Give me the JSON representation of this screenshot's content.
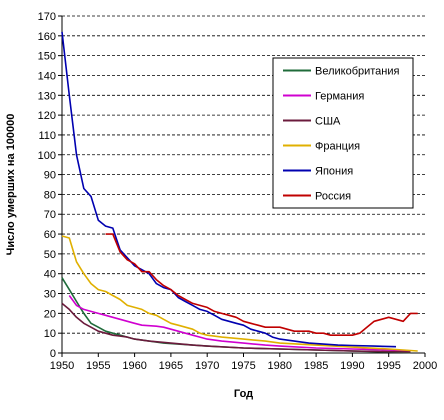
{
  "chart_data": {
    "type": "line",
    "title": "",
    "xlabel": "Год",
    "ylabel": "Число умерших на 100000",
    "xlim": [
      1950,
      2000
    ],
    "ylim": [
      0,
      170
    ],
    "x_ticks": [
      1950,
      1955,
      1960,
      1965,
      1970,
      1975,
      1980,
      1985,
      1990,
      1995,
      2000
    ],
    "y_ticks": [
      0,
      10,
      20,
      30,
      40,
      50,
      60,
      70,
      80,
      90,
      100,
      110,
      120,
      130,
      140,
      150,
      160,
      170
    ],
    "grid": "horizontal dashed",
    "legend_position": "right",
    "series": [
      {
        "name": "Великобритания",
        "color": "#1f6b3a",
        "points": [
          [
            1950,
            38
          ],
          [
            1951,
            32
          ],
          [
            1952,
            26
          ],
          [
            1953,
            20
          ],
          [
            1954,
            15
          ],
          [
            1955,
            13
          ],
          [
            1956,
            11
          ],
          [
            1957,
            10
          ],
          [
            1958,
            9
          ],
          [
            1959,
            8
          ],
          [
            1960,
            7
          ],
          [
            1962,
            6
          ],
          [
            1964,
            5
          ],
          [
            1966,
            4.5
          ],
          [
            1968,
            4
          ],
          [
            1970,
            3.5
          ],
          [
            1975,
            2.5
          ],
          [
            1980,
            2
          ],
          [
            1985,
            1.5
          ],
          [
            1990,
            1
          ],
          [
            1995,
            0.5
          ],
          [
            1998,
            0.3
          ]
        ]
      },
      {
        "name": "Германия",
        "color": "#d000d0",
        "points": [
          [
            1951,
            29
          ],
          [
            1952,
            24
          ],
          [
            1953,
            22
          ],
          [
            1954,
            21
          ],
          [
            1955,
            20
          ],
          [
            1956,
            19
          ],
          [
            1957,
            18
          ],
          [
            1958,
            17
          ],
          [
            1959,
            16
          ],
          [
            1960,
            15
          ],
          [
            1961,
            14
          ],
          [
            1963,
            13.5
          ],
          [
            1964,
            13
          ],
          [
            1965,
            12
          ],
          [
            1966,
            11
          ],
          [
            1967,
            10
          ],
          [
            1968,
            9
          ],
          [
            1969,
            8
          ],
          [
            1970,
            7
          ],
          [
            1972,
            6
          ],
          [
            1975,
            5
          ],
          [
            1978,
            4
          ],
          [
            1980,
            3.5
          ],
          [
            1985,
            2.5
          ],
          [
            1990,
            2
          ],
          [
            1995,
            1.5
          ],
          [
            1998,
            1
          ]
        ]
      },
      {
        "name": "США",
        "color": "#6b1b3c",
        "points": [
          [
            1950,
            25
          ],
          [
            1951,
            22
          ],
          [
            1952,
            18
          ],
          [
            1953,
            15
          ],
          [
            1954,
            13
          ],
          [
            1955,
            11
          ],
          [
            1956,
            10
          ],
          [
            1957,
            9
          ],
          [
            1958,
            8.5
          ],
          [
            1959,
            8
          ],
          [
            1960,
            7
          ],
          [
            1962,
            6
          ],
          [
            1965,
            5
          ],
          [
            1968,
            4
          ],
          [
            1970,
            3.5
          ],
          [
            1975,
            2.5
          ],
          [
            1980,
            2
          ],
          [
            1985,
            1.5
          ],
          [
            1990,
            1
          ],
          [
            1995,
            0.7
          ],
          [
            1998,
            0.5
          ]
        ]
      },
      {
        "name": "Франция",
        "color": "#e0b000",
        "points": [
          [
            1950,
            59
          ],
          [
            1951,
            58
          ],
          [
            1952,
            46
          ],
          [
            1953,
            40
          ],
          [
            1954,
            35
          ],
          [
            1955,
            32
          ],
          [
            1956,
            31
          ],
          [
            1957,
            29
          ],
          [
            1958,
            27
          ],
          [
            1959,
            24
          ],
          [
            1960,
            23
          ],
          [
            1961,
            22
          ],
          [
            1962,
            20
          ],
          [
            1963,
            19
          ],
          [
            1964,
            17
          ],
          [
            1965,
            15
          ],
          [
            1966,
            14
          ],
          [
            1967,
            13
          ],
          [
            1968,
            12
          ],
          [
            1969,
            10
          ],
          [
            1970,
            9
          ],
          [
            1972,
            8
          ],
          [
            1975,
            7
          ],
          [
            1978,
            6
          ],
          [
            1980,
            5
          ],
          [
            1985,
            4
          ],
          [
            1990,
            3
          ],
          [
            1995,
            2
          ],
          [
            1999,
            1
          ]
        ]
      },
      {
        "name": "Япония",
        "color": "#0000b0",
        "points": [
          [
            1950,
            162
          ],
          [
            1951,
            130
          ],
          [
            1952,
            100
          ],
          [
            1953,
            83
          ],
          [
            1954,
            79
          ],
          [
            1955,
            67
          ],
          [
            1956,
            64
          ],
          [
            1957,
            63
          ],
          [
            1958,
            52
          ],
          [
            1959,
            48
          ],
          [
            1960,
            44
          ],
          [
            1961,
            42
          ],
          [
            1962,
            40
          ],
          [
            1963,
            35
          ],
          [
            1964,
            33
          ],
          [
            1965,
            32
          ],
          [
            1966,
            28
          ],
          [
            1967,
            26
          ],
          [
            1968,
            24
          ],
          [
            1969,
            22
          ],
          [
            1970,
            21
          ],
          [
            1971,
            19
          ],
          [
            1972,
            17
          ],
          [
            1973,
            16
          ],
          [
            1974,
            15
          ],
          [
            1975,
            14
          ],
          [
            1976,
            12
          ],
          [
            1977,
            11
          ],
          [
            1978,
            10
          ],
          [
            1979,
            8
          ],
          [
            1980,
            7
          ],
          [
            1982,
            6
          ],
          [
            1984,
            5
          ],
          [
            1986,
            4.5
          ],
          [
            1988,
            4
          ],
          [
            1990,
            3.8
          ],
          [
            1993,
            3.5
          ],
          [
            1996,
            3.2
          ]
        ]
      },
      {
        "name": "Россия",
        "color": "#c00000",
        "points": [
          [
            1956,
            60
          ],
          [
            1957,
            60
          ],
          [
            1958,
            51
          ],
          [
            1959,
            47
          ],
          [
            1960,
            45
          ],
          [
            1961,
            41
          ],
          [
            1962,
            41
          ],
          [
            1963,
            37
          ],
          [
            1964,
            34
          ],
          [
            1965,
            32
          ],
          [
            1966,
            29
          ],
          [
            1967,
            27
          ],
          [
            1968,
            25
          ],
          [
            1969,
            24
          ],
          [
            1970,
            23
          ],
          [
            1971,
            21
          ],
          [
            1972,
            20
          ],
          [
            1973,
            19
          ],
          [
            1974,
            18
          ],
          [
            1975,
            16
          ],
          [
            1976,
            15
          ],
          [
            1977,
            14
          ],
          [
            1978,
            13
          ],
          [
            1979,
            13
          ],
          [
            1980,
            13
          ],
          [
            1981,
            12
          ],
          [
            1982,
            11
          ],
          [
            1983,
            11
          ],
          [
            1984,
            11
          ],
          [
            1985,
            10
          ],
          [
            1986,
            10
          ],
          [
            1987,
            9
          ],
          [
            1988,
            9
          ],
          [
            1989,
            9
          ],
          [
            1990,
            9
          ],
          [
            1991,
            10
          ],
          [
            1992,
            13
          ],
          [
            1993,
            16
          ],
          [
            1994,
            17
          ],
          [
            1995,
            18
          ],
          [
            1996,
            17
          ],
          [
            1997,
            16
          ],
          [
            1998,
            20
          ],
          [
            1999,
            20
          ]
        ]
      }
    ]
  }
}
